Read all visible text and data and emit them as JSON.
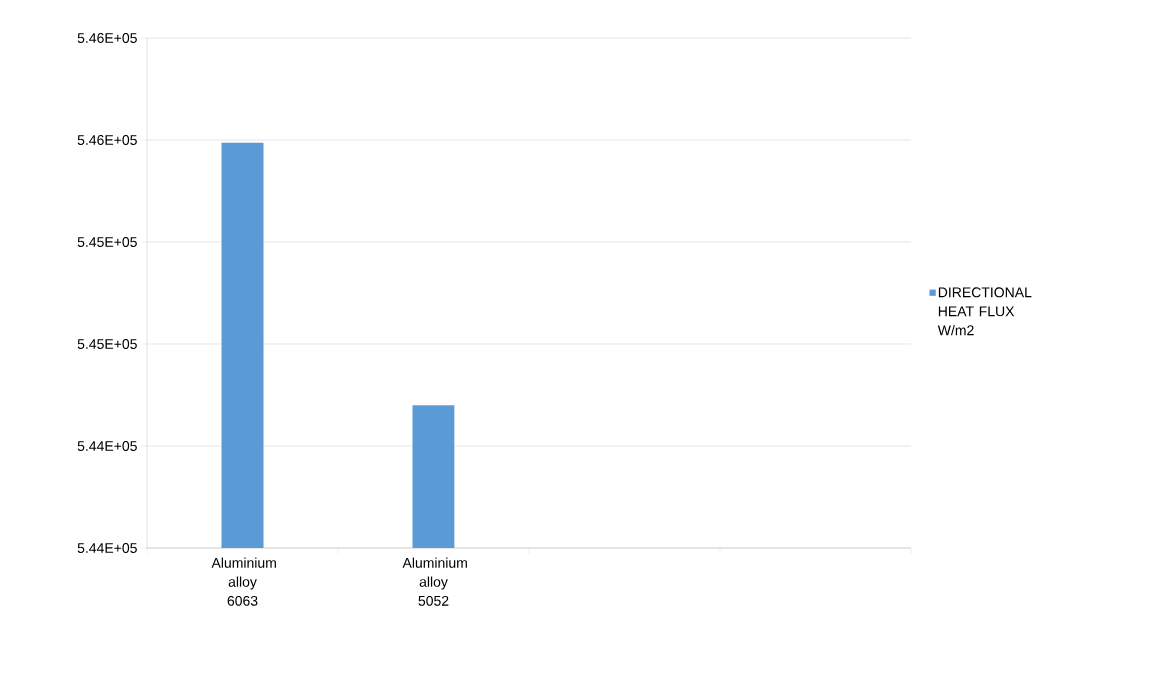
{
  "chart_data": {
    "type": "bar",
    "categories": [
      "Aluminium alloy 6063",
      "Aluminium alloy 5052",
      null,
      null
    ],
    "series": [
      {
        "name": "DIRECTIONAL HEAT FLUX W/m2",
        "color": "#5b9bd5",
        "values": [
          545590,
          544560,
          null,
          null
        ]
      }
    ],
    "ylim": [
      544000,
      546000
    ],
    "yticks": [
      {
        "value": 544000,
        "label": "5.44E+05"
      },
      {
        "value": 544400,
        "label": "5.44E+05"
      },
      {
        "value": 544800,
        "label": "5.45E+05"
      },
      {
        "value": 545200,
        "label": "5.45E+05"
      },
      {
        "value": 545600,
        "label": "5.46E+05"
      },
      {
        "value": 546000,
        "label": "5.46E+05"
      }
    ],
    "grid": "y",
    "legend": "right"
  }
}
